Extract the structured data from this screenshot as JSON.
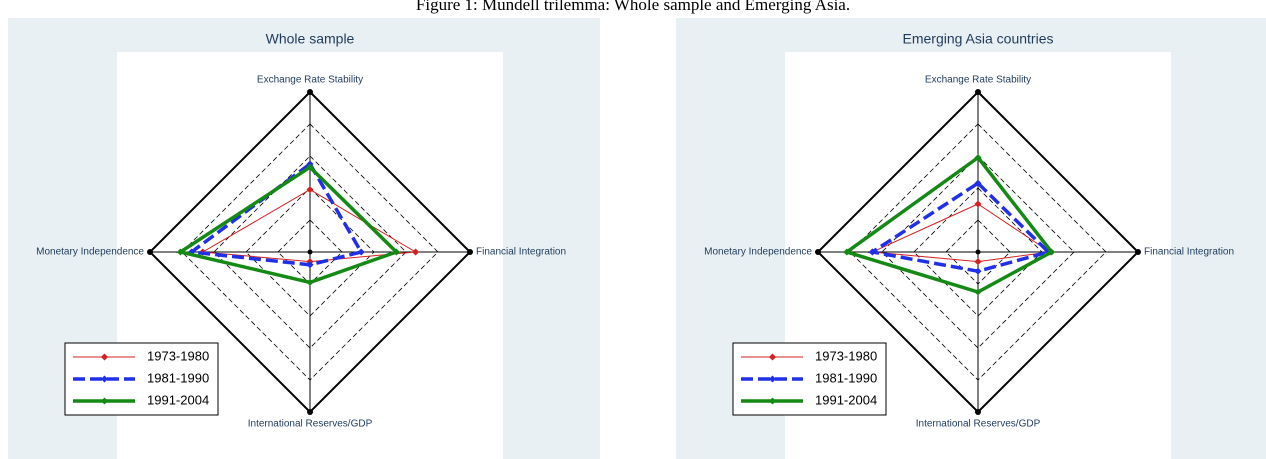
{
  "title": "Figure 1: Mundell trilemma: Whole sample and Emerging Asia.",
  "chart_data": [
    {
      "type": "radar",
      "title": "Whole sample",
      "categories": [
        "Exchange Rate Stability",
        "Financial Integration",
        "International Reserves/GDP",
        "Monetary Independence"
      ],
      "rlim": [
        0,
        1
      ],
      "rticks": [
        0.2,
        0.4,
        0.6,
        0.8,
        1
      ],
      "series": [
        {
          "name": "1973-1980",
          "color": "#d42020",
          "values": [
            0.39,
            0.66,
            0.06,
            0.67
          ]
        },
        {
          "name": "1981-1990",
          "color": "#1f30e8",
          "values": [
            0.55,
            0.32,
            0.08,
            0.74
          ]
        },
        {
          "name": "1991-2004",
          "color": "#148a14",
          "values": [
            0.53,
            0.54,
            0.19,
            0.81
          ]
        }
      ],
      "legend": "lower left"
    },
    {
      "type": "radar",
      "title": "Emerging Asia countries",
      "categories": [
        "Exchange Rate Stability",
        "Financial Integration",
        "International Reserves/GDP",
        "Monetary Independence"
      ],
      "rlim": [
        0,
        1
      ],
      "rticks": [
        0.2,
        0.4,
        0.6,
        0.8,
        1
      ],
      "series": [
        {
          "name": "1973-1980",
          "color": "#d42020",
          "values": [
            0.3,
            0.45,
            0.06,
            0.66
          ]
        },
        {
          "name": "1981-1990",
          "color": "#1f30e8",
          "values": [
            0.43,
            0.44,
            0.12,
            0.66
          ]
        },
        {
          "name": "1991-2004",
          "color": "#148a14",
          "values": [
            0.59,
            0.46,
            0.25,
            0.82
          ]
        }
      ],
      "legend": "lower left"
    }
  ]
}
